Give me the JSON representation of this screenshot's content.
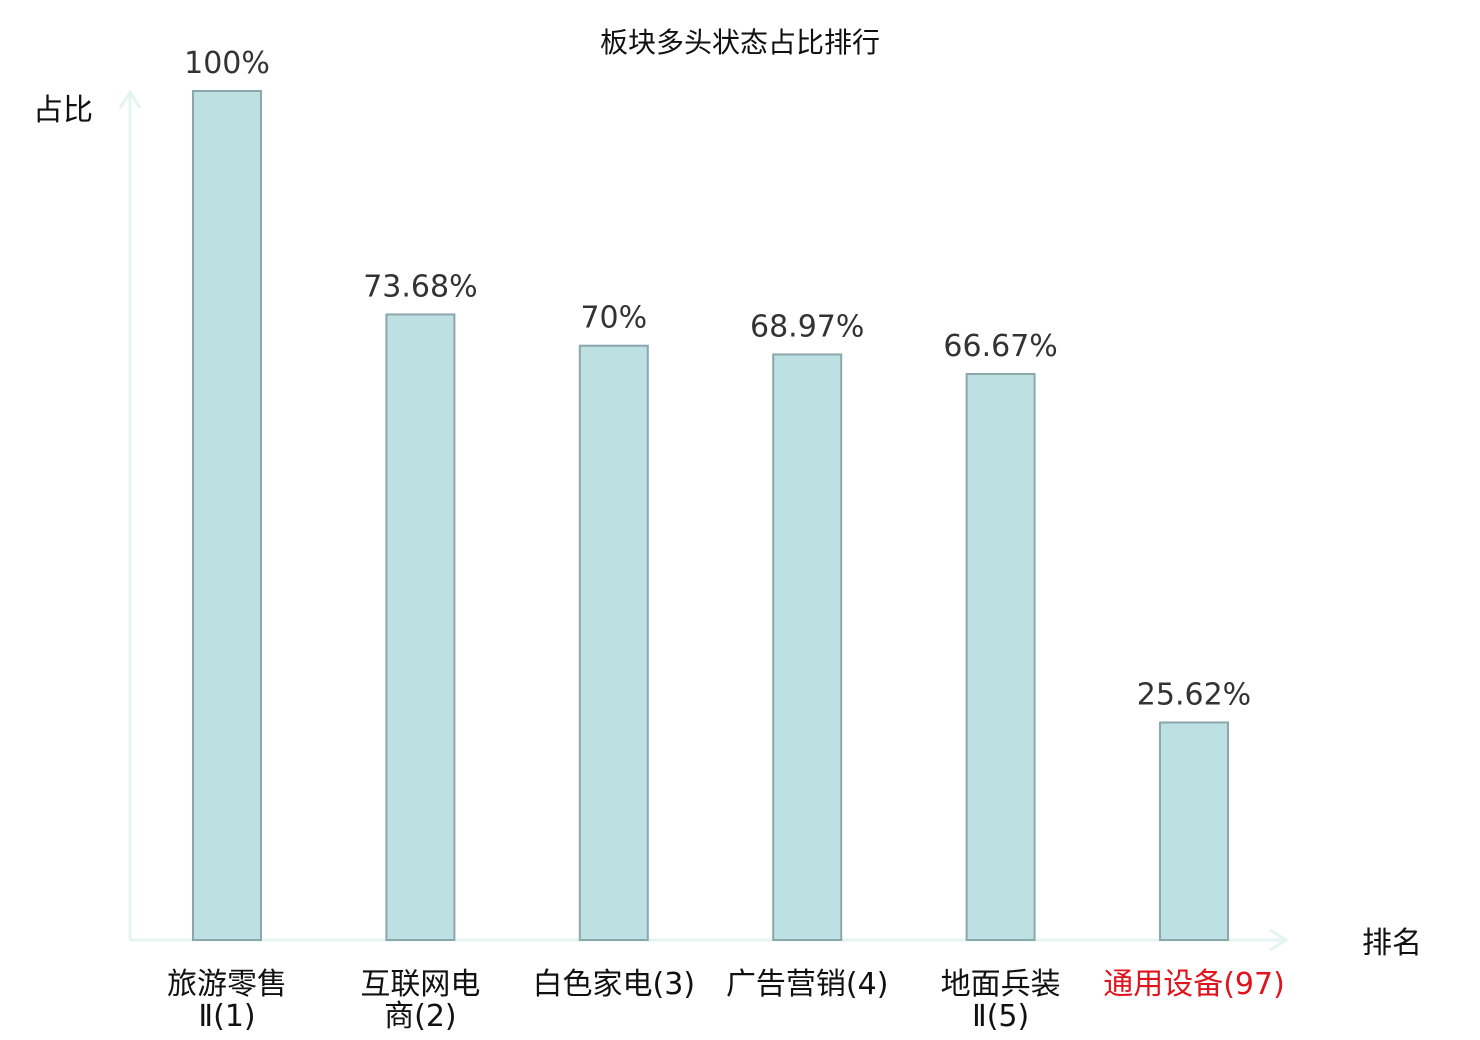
{
  "chart_data": {
    "type": "bar",
    "title": "板块多头状态占比排行",
    "ylabel": "占比",
    "xlabel": "排名",
    "ylim": [
      0,
      100
    ],
    "grid": false,
    "categories": [
      {
        "lines": [
          "旅游零售",
          "Ⅱ(1)"
        ],
        "highlight": false
      },
      {
        "lines": [
          "互联网电",
          "商(2)"
        ],
        "highlight": false
      },
      {
        "lines": [
          "白色家电(3)"
        ],
        "highlight": false
      },
      {
        "lines": [
          "广告营销(4)"
        ],
        "highlight": false
      },
      {
        "lines": [
          "地面兵装",
          "Ⅱ(5)"
        ],
        "highlight": false
      },
      {
        "lines": [
          "通用设备(97)"
        ],
        "highlight": true
      }
    ],
    "values": [
      100,
      73.68,
      70,
      68.97,
      66.67,
      25.62
    ],
    "value_labels": [
      "100%",
      "73.68%",
      "70%",
      "68.97%",
      "66.67%",
      "25.62%"
    ],
    "colors": {
      "bar_fill": "#bde0e3",
      "bar_stroke": "#8aa8ab",
      "axis": "#e3f4f1",
      "highlight_label": "#e0141e"
    }
  }
}
